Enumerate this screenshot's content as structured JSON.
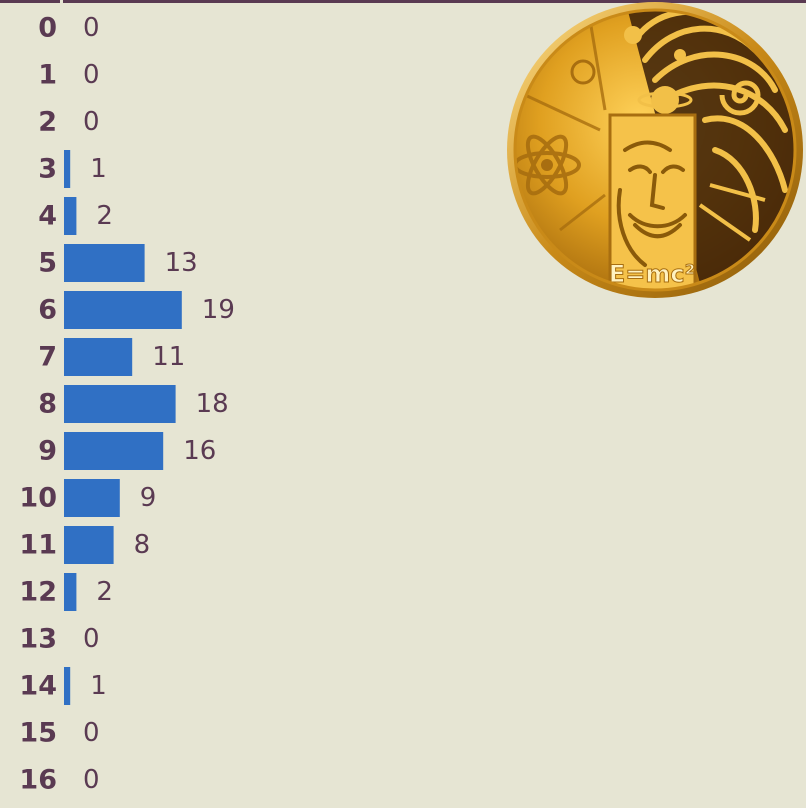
{
  "colors": {
    "background": "#e6e5d3",
    "text": "#5a3a52",
    "bar": "#3070c4",
    "coin_gold": "#e0a020",
    "coin_dark": "#3a1e08"
  },
  "coin_image": {
    "icon": "einstein-gold-coin-icon",
    "inscription": "E=mc²"
  },
  "chart_data": {
    "type": "bar",
    "orientation": "horizontal",
    "categories": [
      "0",
      "1",
      "2",
      "3",
      "4",
      "5",
      "6",
      "7",
      "8",
      "9",
      "10",
      "11",
      "12",
      "13",
      "14",
      "15",
      "16"
    ],
    "values": [
      0,
      0,
      0,
      1,
      2,
      13,
      19,
      11,
      18,
      16,
      9,
      8,
      2,
      0,
      1,
      0,
      0
    ],
    "title": "",
    "xlabel": "",
    "ylabel": "",
    "grid": false,
    "legend": "none",
    "data_labels": true
  }
}
